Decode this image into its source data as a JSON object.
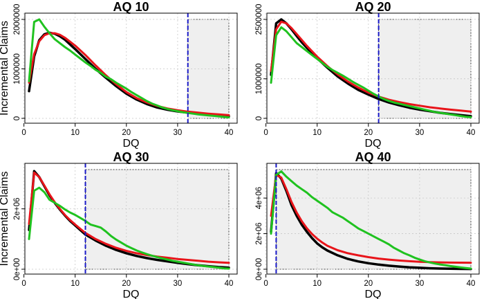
{
  "figure": {
    "ylabel": "Incremental Claims",
    "xlabel": "DQ"
  },
  "colors": {
    "black": "#000000",
    "red": "#e8141a",
    "green": "#1fc21f",
    "cutoff": "#1919c8",
    "shade": "#efefef",
    "grid": "#c8c8c8"
  },
  "chart_data": [
    {
      "type": "line",
      "title": "AQ 10",
      "xlabel": "DQ",
      "ylabel": "Incremental Claims",
      "xlim": [
        1,
        40
      ],
      "ylim": [
        0,
        2000000
      ],
      "xticks": [
        0,
        10,
        20,
        30,
        40
      ],
      "xtick_labels": [
        "0",
        "10",
        "20",
        "30",
        "40"
      ],
      "yticks": [
        0,
        1000000,
        2000000
      ],
      "ytick_labels": [
        "0",
        "1000000",
        "2000000"
      ],
      "cutoff": 32,
      "shaded_region": {
        "x": [
          32,
          40
        ],
        "y": [
          0,
          2000000
        ]
      },
      "series": [
        {
          "name": "black",
          "color": "black",
          "width": 3.5,
          "x": [
            1,
            2,
            3,
            4,
            5,
            6,
            7,
            8,
            10,
            12,
            14,
            16,
            18,
            20,
            22,
            24,
            26,
            28,
            30,
            32,
            34,
            36,
            38,
            40
          ],
          "values": [
            550000,
            1250000,
            1580000,
            1700000,
            1730000,
            1710000,
            1660000,
            1590000,
            1400000,
            1200000,
            1000000,
            820000,
            650000,
            500000,
            380000,
            290000,
            220000,
            175000,
            140000,
            115000,
            95000,
            75000,
            55000,
            40000
          ]
        },
        {
          "name": "red",
          "color": "red",
          "width": 3,
          "x": [
            1,
            2,
            3,
            4,
            5,
            6,
            7,
            8,
            10,
            12,
            14,
            16,
            18,
            20,
            22,
            24,
            26,
            28,
            30,
            32,
            34,
            36,
            38,
            40
          ],
          "values": [
            720000,
            1300000,
            1560000,
            1680000,
            1720000,
            1720000,
            1690000,
            1630000,
            1470000,
            1280000,
            1070000,
            870000,
            690000,
            530000,
            410000,
            320000,
            250000,
            200000,
            165000,
            135000,
            115000,
            95000,
            80000,
            65000
          ]
        },
        {
          "name": "green",
          "color": "green",
          "width": 3,
          "x": [
            1,
            2,
            3,
            4,
            5,
            6,
            7,
            8,
            9,
            10,
            11,
            12,
            13,
            14,
            15,
            16,
            17,
            18,
            19,
            20,
            21,
            22,
            23,
            24,
            25,
            26,
            27,
            28,
            29,
            30,
            31,
            32,
            33,
            34,
            35,
            36,
            37,
            38,
            39,
            40
          ],
          "values": [
            750000,
            1950000,
            2000000,
            1850000,
            1720000,
            1600000,
            1520000,
            1440000,
            1370000,
            1290000,
            1210000,
            1130000,
            1060000,
            980000,
            920000,
            840000,
            790000,
            720000,
            660000,
            600000,
            530000,
            470000,
            410000,
            350000,
            300000,
            260000,
            220000,
            190000,
            165000,
            145000,
            125000,
            110000,
            95000,
            80000,
            70000,
            60000,
            50000,
            40000,
            30000,
            20000
          ]
        }
      ]
    },
    {
      "type": "line",
      "title": "AQ 20",
      "xlabel": "DQ",
      "ylabel": "",
      "xlim": [
        1,
        40
      ],
      "ylim": [
        0,
        2500000
      ],
      "xticks": [
        0,
        10,
        20,
        30,
        40
      ],
      "xtick_labels": [
        "0",
        "10",
        "20",
        "30",
        "40"
      ],
      "yticks": [
        0,
        1000000,
        2500000
      ],
      "ytick_labels": [
        "0",
        "1000000",
        "2500000"
      ],
      "cutoff": 22,
      "shaded_region": {
        "x": [
          22,
          40
        ],
        "y": [
          0,
          2500000
        ]
      },
      "series": [
        {
          "name": "black",
          "color": "black",
          "width": 3.5,
          "x": [
            1,
            2,
            3,
            4,
            5,
            6,
            7,
            8,
            10,
            12,
            14,
            16,
            18,
            20,
            22,
            24,
            26,
            28,
            30,
            32,
            34,
            36,
            38,
            40
          ],
          "values": [
            1100000,
            2400000,
            2500000,
            2400000,
            2250000,
            2080000,
            1920000,
            1780000,
            1520000,
            1280000,
            1060000,
            880000,
            720000,
            600000,
            490000,
            400000,
            330000,
            270000,
            220000,
            180000,
            140000,
            110000,
            80000,
            55000
          ]
        },
        {
          "name": "red",
          "color": "red",
          "width": 3,
          "x": [
            1,
            2,
            3,
            4,
            5,
            6,
            7,
            8,
            10,
            12,
            14,
            16,
            18,
            20,
            22,
            24,
            26,
            28,
            30,
            32,
            34,
            36,
            38,
            40
          ],
          "values": [
            1200000,
            2250000,
            2440000,
            2400000,
            2280000,
            2130000,
            1980000,
            1830000,
            1560000,
            1320000,
            1110000,
            930000,
            780000,
            650000,
            550000,
            470000,
            410000,
            360000,
            320000,
            280000,
            250000,
            220000,
            195000,
            170000
          ]
        },
        {
          "name": "green",
          "color": "green",
          "width": 3,
          "x": [
            1,
            2,
            3,
            4,
            5,
            6,
            7,
            8,
            9,
            10,
            11,
            12,
            13,
            14,
            15,
            16,
            17,
            18,
            19,
            20,
            21,
            22,
            23,
            24,
            25,
            26,
            27,
            28,
            29,
            30,
            31,
            32,
            33,
            34,
            35,
            36,
            37,
            38,
            39,
            40
          ],
          "values": [
            900000,
            2100000,
            2300000,
            2200000,
            2050000,
            1900000,
            1800000,
            1700000,
            1600000,
            1500000,
            1400000,
            1300000,
            1220000,
            1150000,
            1080000,
            1000000,
            920000,
            850000,
            780000,
            700000,
            620000,
            550000,
            490000,
            440000,
            400000,
            370000,
            340000,
            310000,
            280000,
            250000,
            220000,
            190000,
            160000,
            140000,
            120000,
            100000,
            80000,
            60000,
            40000,
            30000
          ]
        }
      ]
    },
    {
      "type": "line",
      "title": "AQ 30",
      "xlabel": "DQ",
      "ylabel": "Incremental Claims",
      "xlim": [
        1,
        40
      ],
      "ylim": [
        0,
        3300000
      ],
      "xticks": [
        0,
        10,
        20,
        30,
        40
      ],
      "xtick_labels": [
        "0",
        "10",
        "20",
        "30",
        "40"
      ],
      "yticks": [
        0,
        2000000
      ],
      "ytick_labels": [
        "0e+00",
        "2e+06"
      ],
      "cutoff": 12,
      "shaded_region": {
        "x": [
          12,
          40
        ],
        "y": [
          0,
          3300000
        ]
      },
      "series": [
        {
          "name": "black",
          "color": "black",
          "width": 3.5,
          "x": [
            1,
            2,
            3,
            4,
            5,
            6,
            7,
            8,
            9,
            10,
            11,
            12,
            14,
            16,
            18,
            20,
            22,
            24,
            26,
            28,
            30,
            32,
            34,
            36,
            38,
            40
          ],
          "values": [
            1300000,
            3250000,
            3050000,
            2750000,
            2450000,
            2200000,
            1980000,
            1780000,
            1600000,
            1450000,
            1300000,
            1150000,
            950000,
            780000,
            640000,
            530000,
            440000,
            370000,
            310000,
            260000,
            210000,
            170000,
            130000,
            100000,
            70000,
            50000
          ]
        },
        {
          "name": "red",
          "color": "red",
          "width": 3,
          "x": [
            1,
            2,
            3,
            4,
            5,
            6,
            7,
            8,
            9,
            10,
            11,
            12,
            14,
            16,
            18,
            20,
            22,
            24,
            26,
            28,
            30,
            32,
            34,
            36,
            38,
            40
          ],
          "values": [
            1500000,
            3200000,
            3050000,
            2770000,
            2480000,
            2220000,
            2000000,
            1800000,
            1630000,
            1480000,
            1340000,
            1200000,
            1000000,
            840000,
            710000,
            610000,
            530000,
            470000,
            420000,
            380000,
            340000,
            310000,
            280000,
            250000,
            230000,
            210000
          ]
        },
        {
          "name": "green",
          "color": "green",
          "width": 3,
          "x": [
            1,
            2,
            3,
            4,
            5,
            6,
            7,
            8,
            9,
            10,
            11,
            12,
            13,
            14,
            15,
            16,
            17,
            18,
            19,
            20,
            21,
            22,
            23,
            24,
            25,
            26,
            27,
            28,
            29,
            30,
            31,
            32,
            33,
            34,
            35,
            36,
            37,
            38,
            39,
            40
          ],
          "values": [
            1000000,
            2600000,
            2700000,
            2550000,
            2300000,
            2200000,
            2100000,
            1980000,
            1880000,
            1800000,
            1700000,
            1600000,
            1480000,
            1430000,
            1380000,
            1250000,
            1100000,
            980000,
            880000,
            780000,
            700000,
            620000,
            560000,
            500000,
            450000,
            400000,
            360000,
            320000,
            280000,
            250000,
            220000,
            190000,
            160000,
            130000,
            110000,
            90000,
            70000,
            50000,
            30000,
            20000
          ]
        }
      ]
    },
    {
      "type": "line",
      "title": "AQ 40",
      "xlabel": "DQ",
      "ylabel": "",
      "xlim": [
        1,
        40
      ],
      "ylim": [
        0,
        5600000
      ],
      "xticks": [
        0,
        10,
        20,
        30,
        40
      ],
      "xtick_labels": [
        "0",
        "10",
        "20",
        "30",
        "40"
      ],
      "yticks": [
        0,
        2000000,
        4000000
      ],
      "ytick_labels": [
        "0e+00",
        "2e+06",
        "4e+06"
      ],
      "cutoff": 2,
      "shaded_region": {
        "x": [
          2,
          40
        ],
        "y": [
          0,
          5600000
        ]
      },
      "series": [
        {
          "name": "black",
          "color": "black",
          "width": 3.5,
          "x": [
            1,
            2,
            3,
            4,
            5,
            6,
            7,
            8,
            9,
            10,
            11,
            12,
            14,
            16,
            18,
            20,
            22,
            24,
            26,
            28,
            30,
            32,
            34,
            36,
            38,
            40
          ],
          "values": [
            2100000,
            5400000,
            5100000,
            4400000,
            3600000,
            3000000,
            2500000,
            2100000,
            1750000,
            1450000,
            1230000,
            1050000,
            780000,
            580000,
            440000,
            340000,
            260000,
            200000,
            150000,
            110000,
            80000,
            55000,
            40000,
            30000,
            20000,
            15000
          ]
        },
        {
          "name": "red",
          "color": "red",
          "width": 3,
          "x": [
            1,
            2,
            3,
            4,
            5,
            6,
            7,
            8,
            9,
            10,
            11,
            12,
            14,
            16,
            18,
            20,
            22,
            24,
            26,
            28,
            30,
            32,
            34,
            36,
            38,
            40
          ],
          "values": [
            3000000,
            5300000,
            5150000,
            4500000,
            3780000,
            3180000,
            2700000,
            2300000,
            1980000,
            1720000,
            1500000,
            1320000,
            1070000,
            900000,
            780000,
            680000,
            600000,
            540000,
            490000,
            450000,
            420000,
            400000,
            385000,
            375000,
            370000,
            365000
          ]
        },
        {
          "name": "green",
          "color": "green",
          "width": 3,
          "x": [
            1,
            2,
            3,
            4,
            5,
            6,
            7,
            8,
            9,
            10,
            11,
            12,
            13,
            14,
            15,
            16,
            17,
            18,
            19,
            20,
            21,
            22,
            23,
            24,
            25,
            26,
            27,
            28,
            29,
            30,
            31,
            32,
            33,
            34,
            35,
            36,
            37,
            38,
            39,
            40
          ],
          "values": [
            2000000,
            5300000,
            5500000,
            5200000,
            4950000,
            4700000,
            4500000,
            4300000,
            4050000,
            3850000,
            3650000,
            3450000,
            3200000,
            3050000,
            2900000,
            2700000,
            2500000,
            2300000,
            2150000,
            2000000,
            1850000,
            1700000,
            1550000,
            1400000,
            1200000,
            1050000,
            900000,
            780000,
            650000,
            550000,
            450000,
            380000,
            320000,
            270000,
            230000,
            180000,
            140000,
            100000,
            70000,
            40000
          ]
        }
      ]
    }
  ]
}
